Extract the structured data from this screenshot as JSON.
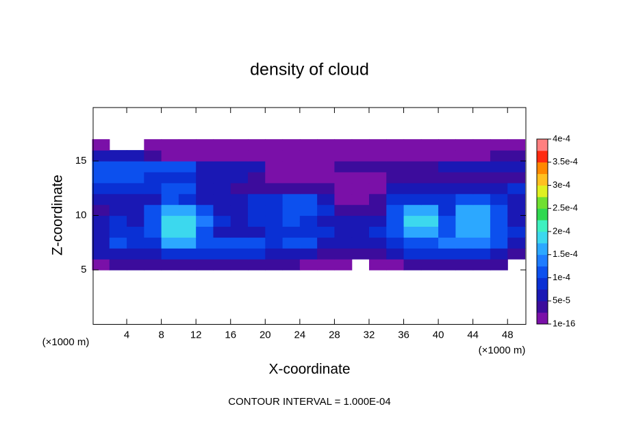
{
  "chart_data": {
    "type": "heatmap",
    "title": "density of cloud",
    "xlabel": "X-coordinate",
    "ylabel": "Z-coordinate",
    "x_unit": "(×1000 m)",
    "annotation": "CONTOUR INTERVAL = 1.000E-04",
    "xlim": [
      0,
      50
    ],
    "ylim": [
      0,
      20
    ],
    "xticks": [
      4,
      8,
      12,
      16,
      20,
      24,
      28,
      32,
      36,
      40,
      44,
      48
    ],
    "yticks": [
      5,
      10,
      15
    ],
    "x": [
      1,
      3,
      5,
      7,
      9,
      11,
      13,
      15,
      17,
      19,
      21,
      23,
      25,
      27,
      29,
      31,
      33,
      35,
      37,
      39,
      41,
      43,
      45,
      47,
      49
    ],
    "y": [
      5.5,
      6.5,
      7.5,
      8.5,
      9.5,
      10.5,
      11.5,
      12.5,
      13.5,
      14.5,
      15.5,
      16.5
    ],
    "z": [
      [
        2e-05,
        3e-05,
        3e-05,
        3e-05,
        4e-05,
        4e-05,
        3e-05,
        3e-05,
        3e-05,
        3e-05,
        3e-05,
        3e-05,
        2e-05,
        2e-05,
        2e-05,
        null,
        1e-05,
        2e-05,
        3e-05,
        3e-05,
        3e-05,
        3e-05,
        3e-05,
        3e-05,
        null
      ],
      [
        5e-05,
        6e-05,
        6e-05,
        6e-05,
        9e-05,
        9e-05,
        8e-05,
        8e-05,
        8e-05,
        8e-05,
        6e-05,
        6e-05,
        6e-05,
        4e-05,
        3e-05,
        3e-05,
        3e-05,
        6e-05,
        8e-05,
        8e-05,
        8e-05,
        8e-05,
        8e-05,
        6e-05,
        4e-05
      ],
      [
        7e-05,
        0.00011,
        8e-05,
        9e-05,
        0.00015,
        0.00015,
        0.00011,
        0.0001,
        0.0001,
        0.0001,
        8e-05,
        0.0001,
        0.0001,
        7e-05,
        5e-05,
        5e-05,
        5e-05,
        9e-05,
        0.00012,
        0.00012,
        0.00013,
        0.00013,
        0.00013,
        0.0001,
        7e-05
      ],
      [
        6e-05,
        9e-05,
        9e-05,
        0.00011,
        0.00018,
        0.00018,
        0.00012,
        7e-05,
        6e-05,
        6e-05,
        8e-05,
        9e-05,
        8e-05,
        9e-05,
        6e-05,
        6e-05,
        8e-05,
        0.00011,
        0.00017,
        0.00017,
        0.00011,
        0.00015,
        0.00015,
        0.00011,
        8e-05
      ],
      [
        5e-05,
        8e-05,
        6e-05,
        0.00012,
        0.00019,
        0.00019,
        0.00014,
        8e-05,
        5e-05,
        8e-05,
        8e-05,
        0.00011,
        9e-05,
        7e-05,
        5e-05,
        5e-05,
        7e-05,
        0.00012,
        0.00018,
        0.00018,
        0.0001,
        0.00017,
        0.00017,
        0.00011,
        7e-05
      ],
      [
        4e-05,
        7e-05,
        7e-05,
        0.0001,
        0.00017,
        0.00017,
        0.00011,
        6e-05,
        6e-05,
        9e-05,
        9e-05,
        0.00011,
        0.00011,
        8e-05,
        4e-05,
        4e-05,
        4e-05,
        0.00012,
        0.00016,
        0.00016,
        9e-05,
        0.00016,
        0.00016,
        0.00011,
        7e-05
      ],
      [
        5e-05,
        5e-05,
        5e-05,
        6e-05,
        0.00011,
        9e-05,
        6e-05,
        6e-05,
        6e-05,
        8e-05,
        8e-05,
        0.0001,
        0.0001,
        6e-05,
        2e-05,
        2e-05,
        4e-05,
        9e-05,
        9e-05,
        9e-05,
        8e-05,
        0.00012,
        0.00012,
        8e-05,
        6e-05
      ],
      [
        8e-05,
        8e-05,
        8e-05,
        8e-05,
        0.00012,
        0.0001,
        7e-05,
        7e-05,
        4e-05,
        4e-05,
        3e-05,
        3e-05,
        3e-05,
        3e-05,
        2e-05,
        2e-05,
        2e-05,
        5e-05,
        5e-05,
        5e-05,
        5e-05,
        6e-05,
        6e-05,
        6e-05,
        8e-05
      ],
      [
        0.00012,
        0.00012,
        0.00011,
        9e-05,
        9e-05,
        9e-05,
        5e-05,
        5e-05,
        5e-05,
        3e-05,
        2e-05,
        2e-05,
        2e-05,
        2e-05,
        1e-05,
        1e-05,
        1e-05,
        4e-05,
        4e-05,
        4e-05,
        4e-05,
        4e-05,
        4e-05,
        4e-05,
        4e-05
      ],
      [
        0.0001,
        0.0001,
        0.0001,
        0.0001,
        0.0001,
        0.0001,
        6e-05,
        6e-05,
        6e-05,
        6e-05,
        2e-05,
        2e-05,
        2e-05,
        2e-05,
        3e-05,
        3e-05,
        3e-05,
        3e-05,
        3e-05,
        3e-05,
        5e-05,
        5e-05,
        5e-05,
        5e-05,
        5e-05
      ],
      [
        6e-05,
        6e-05,
        6e-05,
        3e-05,
        2e-05,
        2e-05,
        2e-05,
        2e-05,
        2e-05,
        2e-05,
        1e-05,
        1e-05,
        1e-05,
        1e-05,
        1e-05,
        1e-05,
        1e-05,
        2e-05,
        2e-05,
        2e-05,
        2e-05,
        2e-05,
        2e-05,
        3e-05,
        3e-05
      ],
      [
        1e-05,
        null,
        null,
        1e-05,
        1e-05,
        1e-05,
        1e-05,
        1e-05,
        1e-05,
        1e-05,
        1e-05,
        1e-05,
        1e-05,
        1e-05,
        1e-05,
        1e-05,
        1e-05,
        1e-05,
        1e-05,
        1e-05,
        1e-05,
        1e-05,
        1e-05,
        1e-05,
        1e-05
      ]
    ],
    "colorbar_ticks": [
      {
        "value": 1e-16,
        "label": "1e-16"
      },
      {
        "value": 5e-05,
        "label": "5e-5"
      },
      {
        "value": 0.0001,
        "label": "1e-4"
      },
      {
        "value": 0.00015,
        "label": "1.5e-4"
      },
      {
        "value": 0.0002,
        "label": "2e-4"
      },
      {
        "value": 0.00025,
        "label": "2.5e-4"
      },
      {
        "value": 0.0003,
        "label": "3e-4"
      },
      {
        "value": 0.00035,
        "label": "3.5e-4"
      },
      {
        "value": 0.0004,
        "label": "4e-4"
      }
    ],
    "colors": [
      "#7a10a8",
      "#3c0c9c",
      "#1a18b4",
      "#0a30d4",
      "#0c50ee",
      "#1e7cff",
      "#2ca8ff",
      "#3cd8ee",
      "#3ef0c0",
      "#30d850",
      "#70e030",
      "#e0f020",
      "#ffc020",
      "#ff8800",
      "#ff2a10",
      "#ff8080"
    ]
  }
}
